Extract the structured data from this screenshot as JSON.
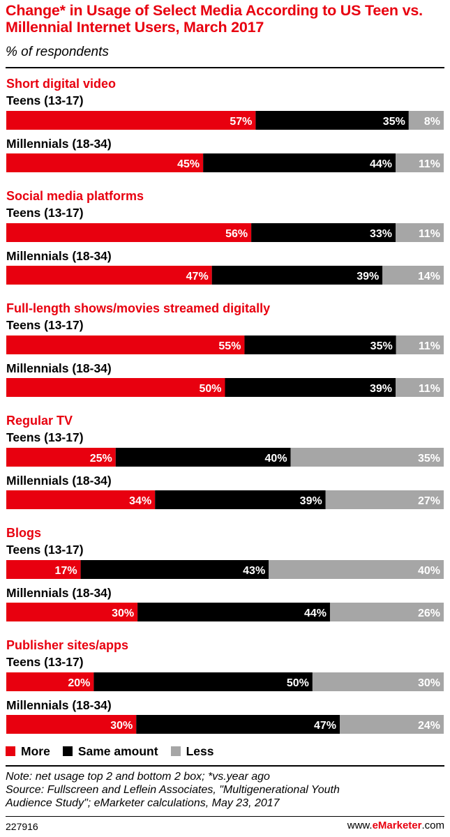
{
  "header": {
    "title": "Change* in Usage of Select Media According to US Teen vs. Millennial Internet Users, March 2017",
    "subtitle": "% of respondents"
  },
  "colors": {
    "more": "#e8000f",
    "same": "#000000",
    "less": "#a6a6a6",
    "title": "#e8000f"
  },
  "chart_data": {
    "type": "bar",
    "stacked": true,
    "orientation": "horizontal",
    "percent_scale": [
      0,
      100
    ],
    "series_names": [
      "More",
      "Same amount",
      "Less"
    ],
    "categories": [
      {
        "name": "Short digital video",
        "groups": [
          {
            "label": "Teens (13-17)",
            "values": [
              57,
              35,
              8
            ]
          },
          {
            "label": "Millennials (18-34)",
            "values": [
              45,
              44,
              11
            ]
          }
        ]
      },
      {
        "name": "Social media platforms",
        "groups": [
          {
            "label": "Teens (13-17)",
            "values": [
              56,
              33,
              11
            ]
          },
          {
            "label": "Millennials (18-34)",
            "values": [
              47,
              39,
              14
            ]
          }
        ]
      },
      {
        "name": "Full-length shows/movies streamed digitally",
        "groups": [
          {
            "label": "Teens (13-17)",
            "values": [
              55,
              35,
              11
            ]
          },
          {
            "label": "Millennials (18-34)",
            "values": [
              50,
              39,
              11
            ]
          }
        ]
      },
      {
        "name": "Regular TV",
        "groups": [
          {
            "label": "Teens (13-17)",
            "values": [
              25,
              40,
              35
            ]
          },
          {
            "label": "Millennials (18-34)",
            "values": [
              34,
              39,
              27
            ]
          }
        ]
      },
      {
        "name": "Blogs",
        "groups": [
          {
            "label": "Teens (13-17)",
            "values": [
              17,
              43,
              40
            ]
          },
          {
            "label": "Millennials (18-34)",
            "values": [
              30,
              44,
              26
            ]
          }
        ]
      },
      {
        "name": "Publisher sites/apps",
        "groups": [
          {
            "label": "Teens (13-17)",
            "values": [
              20,
              50,
              30
            ]
          },
          {
            "label": "Millennials (18-34)",
            "values": [
              30,
              47,
              24
            ]
          }
        ]
      }
    ],
    "legend_position": "bottom-left"
  },
  "legend": {
    "more": "More",
    "same": "Same amount",
    "less": "Less"
  },
  "note": {
    "line1": "Note: net usage top 2 and bottom 2 box; *vs.year ago",
    "line2": "Source: Fullscreen and Leflein Associates, \"Multigenerational Youth",
    "line3": "Audience Study\"; eMarketer calculations, May 23, 2017"
  },
  "footer": {
    "chart_id": "227916",
    "site_prefix": "www.",
    "site_brand": "eMarketer",
    "site_suffix": ".com"
  }
}
